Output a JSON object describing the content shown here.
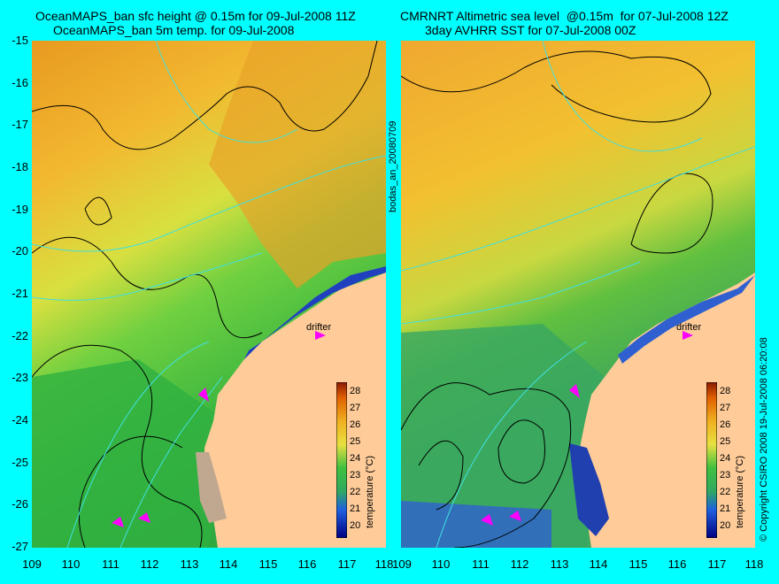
{
  "left_panel": {
    "title_line1": "OceanMAPS_ban sfc height @ 0.15m for 09-Jul-2008 11Z",
    "title_line2": "OceanMAPS_ban 5m temp. for 09-Jul-2008",
    "colorbar_label": "temperature (°C)",
    "drifter_label": "drifter"
  },
  "right_panel": {
    "title_line1": "CMRNRT Altimetric sea level  @0.15m  for 07-Jul-2008 12Z",
    "title_line2": "3day AVHRR SST for 07-Jul-2008 00Z",
    "colorbar_label": "temperature (°C)",
    "drifter_label": "drifter"
  },
  "center_vertical_text": "bodas_an_20080709",
  "right_vertical_text": "© Copyright CSIRO 2008  19-Jul-2008 06:20:08",
  "latitude_ticks": [
    "-15",
    "-16",
    "-17",
    "-18",
    "-19",
    "-20",
    "-21",
    "-22",
    "-23",
    "-24",
    "-25",
    "-26",
    "-27"
  ],
  "longitude_ticks": [
    "109",
    "110",
    "111",
    "112",
    "113",
    "114",
    "115",
    "116",
    "117",
    "118"
  ],
  "colorbar_ticks": [
    "28",
    "27",
    "26",
    "25",
    "24",
    "23",
    "22",
    "21",
    "20"
  ],
  "colors": {
    "background": "#00ffff",
    "land": "#ffcc99",
    "land_shelf": "#c0a890",
    "contour": "#000000",
    "current_lines": "#40e0e0",
    "drifter": "#ff00ff"
  }
}
